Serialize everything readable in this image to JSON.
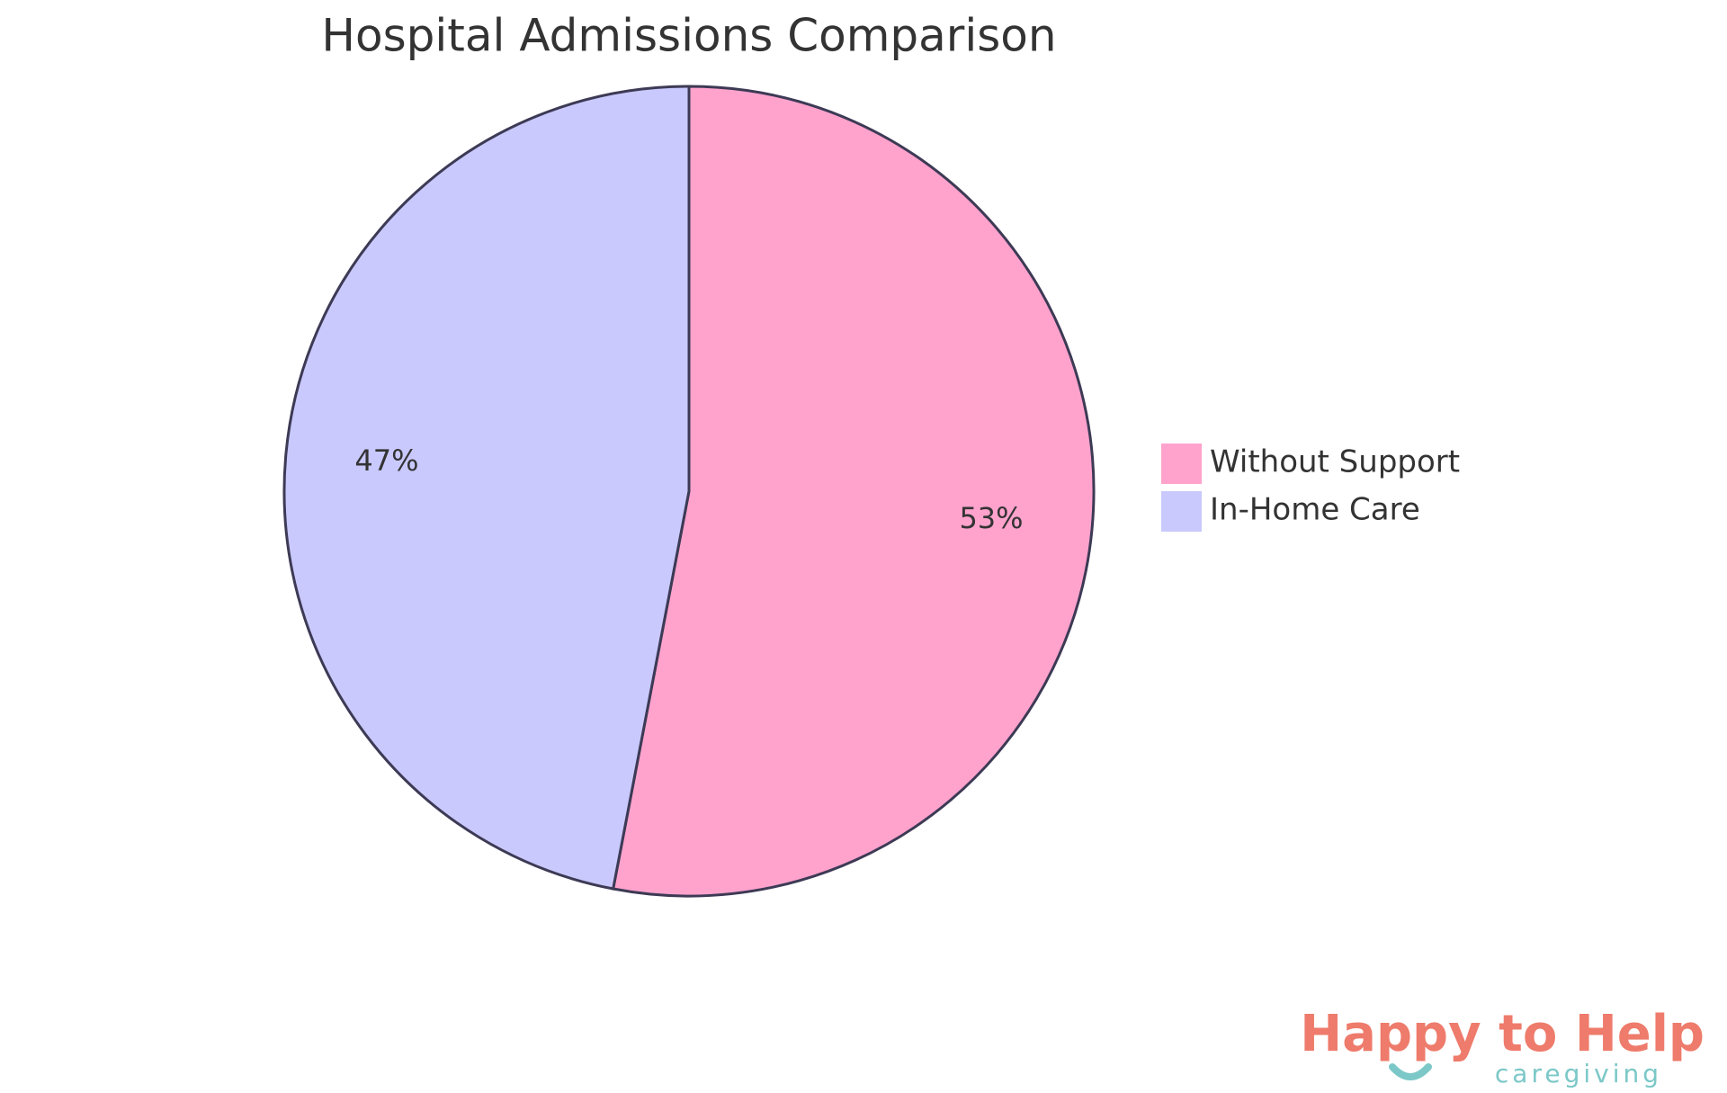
{
  "chart_data": {
    "type": "pie",
    "title": "Hospital Admissions Comparison",
    "series": [
      {
        "name": "Without Support",
        "color": "#ffa3cd",
        "values": [
          53
        ],
        "value_labels": [
          "53%"
        ]
      },
      {
        "name": "In-Home Care",
        "color": "#c9c9fd",
        "values": [
          47
        ],
        "value_labels": [
          "47%"
        ]
      }
    ],
    "legend": "right"
  },
  "logo": {
    "name": "Happy to Help",
    "tagline": "caregiving"
  }
}
